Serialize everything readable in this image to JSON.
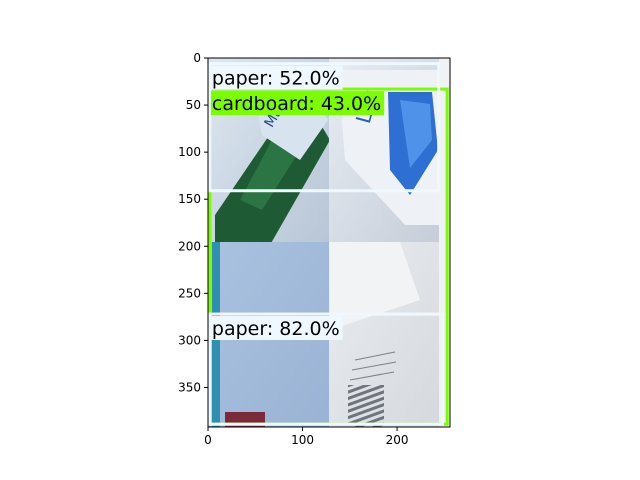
{
  "plot": {
    "x_axis": {
      "range": [
        0,
        256
      ],
      "ticks": [
        {
          "value": 0,
          "label": "0"
        },
        {
          "value": 100,
          "label": "100"
        },
        {
          "value": 200,
          "label": "200"
        }
      ]
    },
    "y_axis": {
      "range": [
        0,
        392
      ],
      "inverted": true,
      "ticks": [
        {
          "value": 0,
          "label": "0"
        },
        {
          "value": 50,
          "label": "50"
        },
        {
          "value": 100,
          "label": "100"
        },
        {
          "value": 150,
          "label": "150"
        },
        {
          "value": 200,
          "label": "200"
        },
        {
          "value": 250,
          "label": "250"
        },
        {
          "value": 300,
          "label": "300"
        },
        {
          "value": 350,
          "label": "350"
        }
      ]
    },
    "image": {
      "description_tiles": [
        {
          "name": "tile-bottle-green",
          "x": [
            0,
            128
          ],
          "y": [
            0,
            196
          ]
        },
        {
          "name": "tile-bottle-blue",
          "x": [
            128,
            245
          ],
          "y": [
            0,
            196
          ]
        },
        {
          "name": "tile-blue-paper",
          "x": [
            0,
            128
          ],
          "y": [
            196,
            392
          ]
        },
        {
          "name": "tile-envelope",
          "x": [
            128,
            245
          ],
          "y": [
            196,
            392
          ]
        }
      ]
    },
    "detections": [
      {
        "label": "cardboard: 43.0%",
        "color": "#7cfc00",
        "box": {
          "x0": 2,
          "y0": 33,
          "x1": 253,
          "y1": 389
        },
        "label_bg": "#7cfc00"
      },
      {
        "label": "paper: 52.0%",
        "color": "#f0f8ff",
        "box": {
          "x0": 2,
          "y0": 6,
          "x1": 244,
          "y1": 141
        },
        "label_bg": "#f0f8ff"
      },
      {
        "label": "paper: 82.0%",
        "color": "#f0f8ff",
        "box": {
          "x0": 2,
          "y0": 272,
          "x1": 248,
          "y1": 389
        },
        "label_bg": "#f0f8ff"
      }
    ]
  }
}
